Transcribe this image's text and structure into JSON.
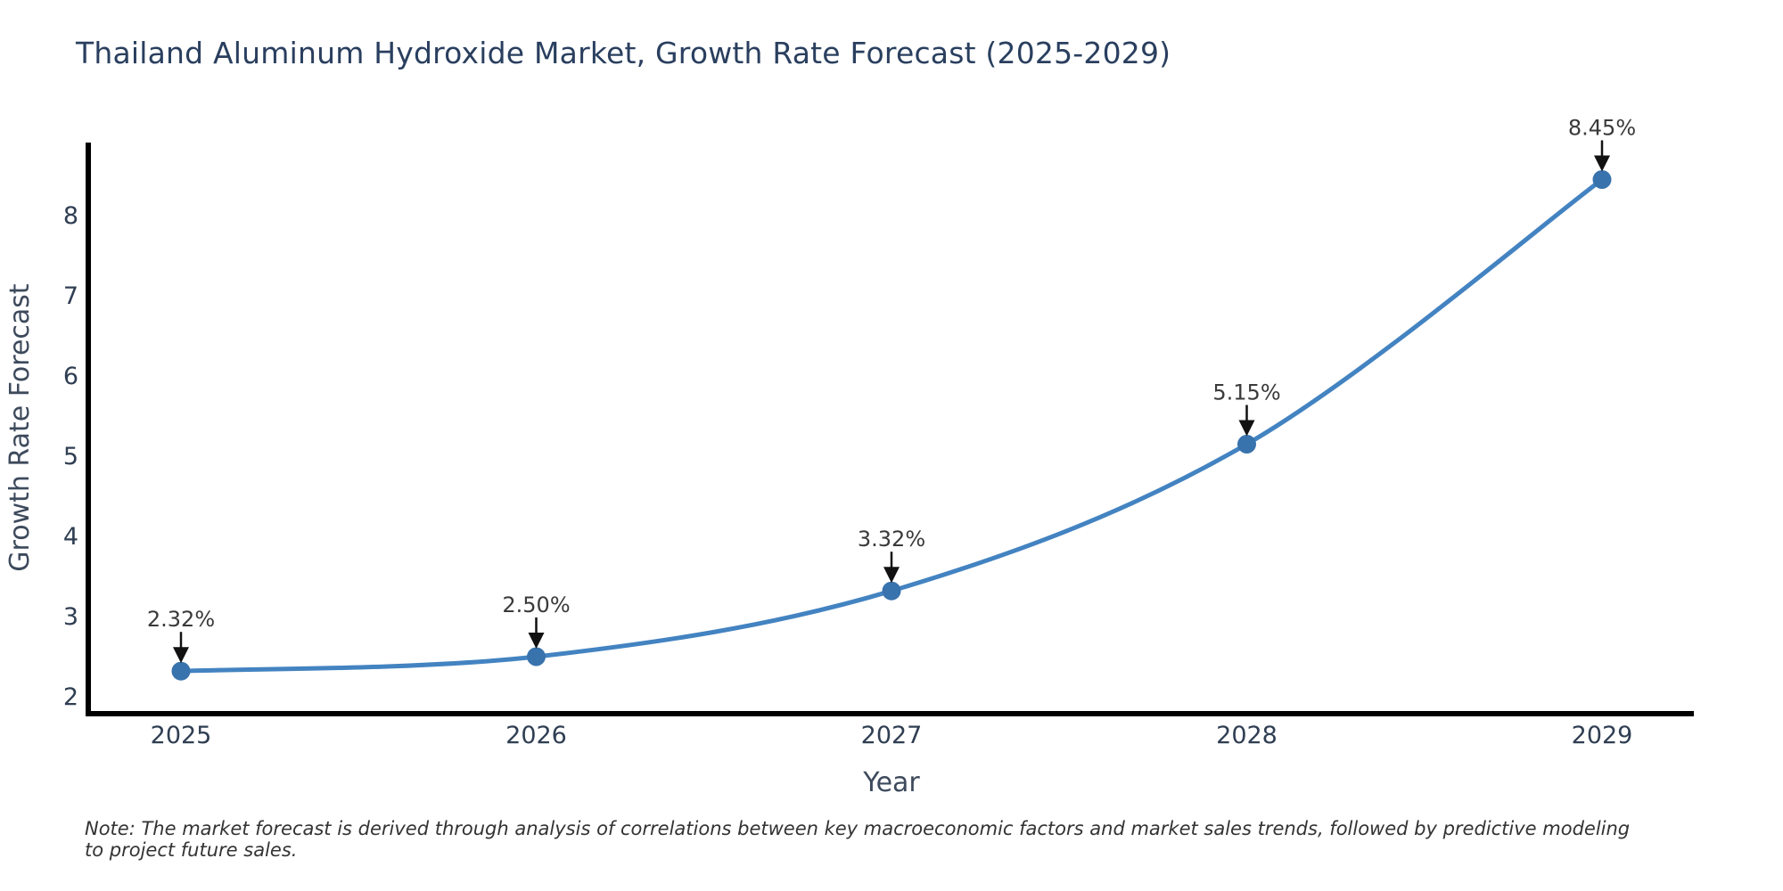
{
  "title": "Thailand Aluminum Hydroxide Market, Growth Rate Forecast (2025-2029)",
  "note": "Note: The market forecast is derived through analysis of correlations between key macroeconomic factors and market sales trends, followed by predictive modeling to project future sales.",
  "chart_data": {
    "type": "line",
    "title": "Thailand Aluminum Hydroxide Market, Growth Rate Forecast (2025-2029)",
    "xlabel": "Year",
    "ylabel": "Growth Rate Forecast",
    "categories": [
      "2025",
      "2026",
      "2027",
      "2028",
      "2029"
    ],
    "series": [
      {
        "name": "Growth Rate Forecast",
        "values": [
          2.32,
          2.5,
          3.32,
          5.15,
          8.45
        ]
      }
    ],
    "annotations": [
      "2.32%",
      "2.50%",
      "3.32%",
      "5.15%",
      "8.45%"
    ],
    "y_ticks": [
      2,
      3,
      4,
      5,
      6,
      7,
      8
    ],
    "ylim": [
      1.8,
      8.9
    ],
    "grid": false,
    "legend_position": "none",
    "line_shape": "spline",
    "colors": {
      "line": "#4383c1",
      "marker": "#3873ad",
      "axis": "#000000",
      "arrow": "#111111",
      "title_text": "#2a3f5f",
      "tick_text": "#2f3e52",
      "annotation_text": "#3a3a3a",
      "note_text": "#333333"
    }
  }
}
